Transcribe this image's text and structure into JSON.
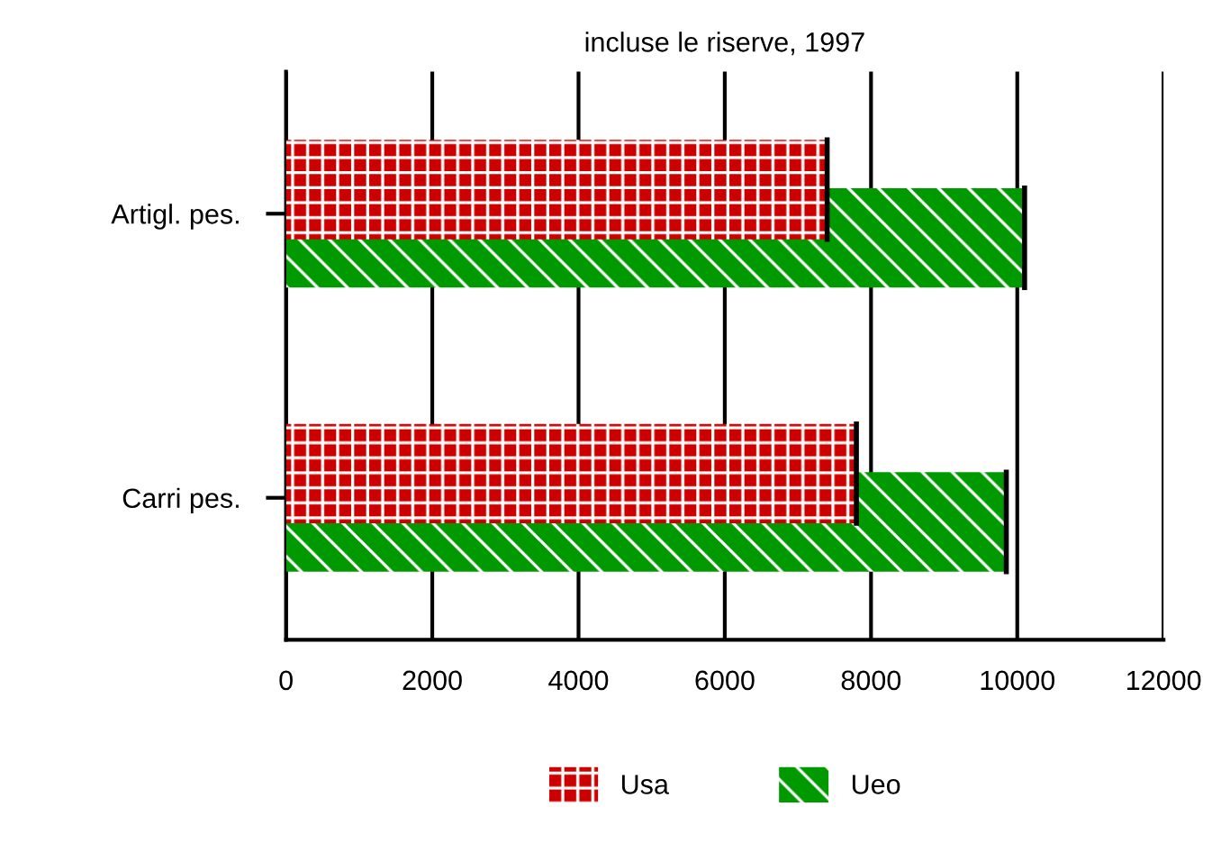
{
  "chart_data": {
    "type": "bar",
    "orientation": "horizontal",
    "title": "incluse le riserve, 1997",
    "categories": [
      "Artigl. pes.",
      "Carri pes."
    ],
    "series": [
      {
        "name": "Usa",
        "color": "#cc0000",
        "values": [
          7400,
          7800
        ]
      },
      {
        "name": "Ueo",
        "color": "#009900",
        "values": [
          10100,
          9850
        ]
      }
    ],
    "xlim": [
      0,
      12000
    ],
    "xticks": [
      0,
      2000,
      4000,
      6000,
      8000,
      10000,
      12000
    ],
    "grid": "x",
    "legend": "bottom"
  }
}
